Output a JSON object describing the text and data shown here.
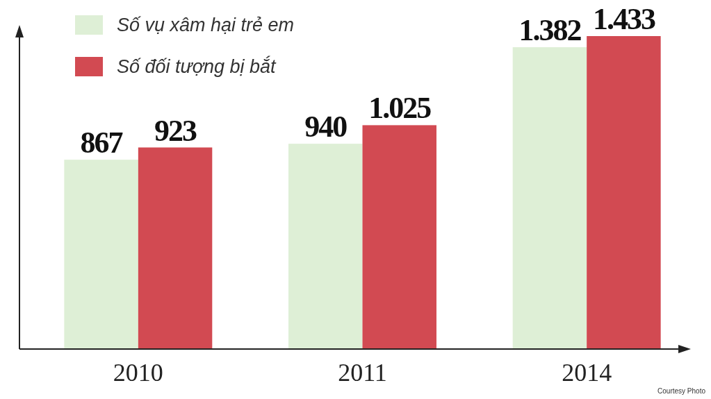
{
  "chart_data": {
    "type": "bar",
    "categories": [
      "2010",
      "2011",
      "2014"
    ],
    "series": [
      {
        "name": "Số vụ xâm hại trẻ em",
        "color": "#deefd6",
        "values": [
          867,
          940,
          1382
        ],
        "value_labels": [
          "867",
          "940",
          "1.382"
        ]
      },
      {
        "name": "Số đối tượng bị bắt",
        "color": "#d24a52",
        "values": [
          923,
          1025,
          1433
        ],
        "value_labels": [
          "923",
          "1.025",
          "1.433"
        ]
      }
    ],
    "legend": "top left",
    "annotations": [
      "Courtesy Photo"
    ]
  }
}
